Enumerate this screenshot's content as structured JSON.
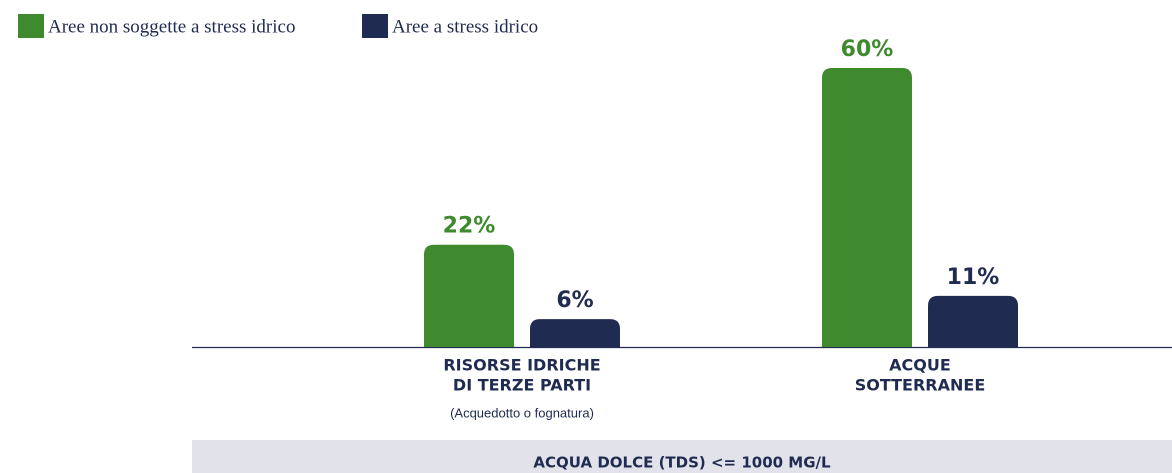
{
  "chart_data": {
    "type": "bar",
    "categories": [
      [
        "RISORSE IDRICHE",
        "DI TERZE PARTI"
      ],
      [
        "ACQUE",
        "SOTTERRANEE"
      ]
    ],
    "annotation": "(Acquedotto o fognatura)",
    "footer": "ACQUA DOLCE (TDS) <= 1000 MG/L",
    "series": [
      {
        "name": "Aree non soggette a stress idrico",
        "color": "#3f8a2e",
        "values": [
          22,
          60
        ],
        "value_labels": [
          "22%",
          "60%"
        ]
      },
      {
        "name": "Aree a stress idrico",
        "color": "#1f2b50",
        "values": [
          6,
          11
        ],
        "value_labels": [
          "6%",
          "11%"
        ]
      }
    ]
  }
}
